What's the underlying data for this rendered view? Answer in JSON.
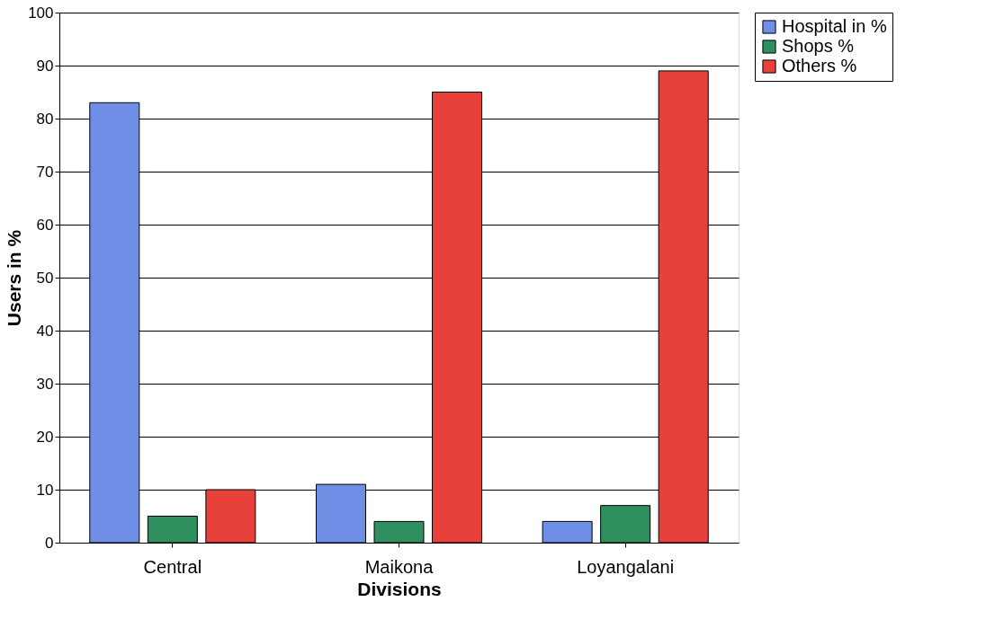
{
  "chart_data": {
    "type": "bar",
    "xlabel": "Divisions",
    "ylabel": "Users in %",
    "categories": [
      "Central",
      "Maikona",
      "Loyangalani"
    ],
    "series": [
      {
        "name": "Hospital in %",
        "color": "#6f8fe6",
        "values": [
          83,
          11,
          4
        ]
      },
      {
        "name": "Shops %",
        "color": "#2f8f5f",
        "values": [
          5,
          4,
          7
        ]
      },
      {
        "name": "Others %",
        "color": "#e8413c",
        "values": [
          10,
          85,
          89
        ]
      }
    ],
    "ylim": [
      0,
      100
    ],
    "yticks": [
      0,
      10,
      20,
      30,
      40,
      50,
      60,
      70,
      80,
      90,
      100
    ],
    "grid": "y",
    "legend": "top right"
  }
}
